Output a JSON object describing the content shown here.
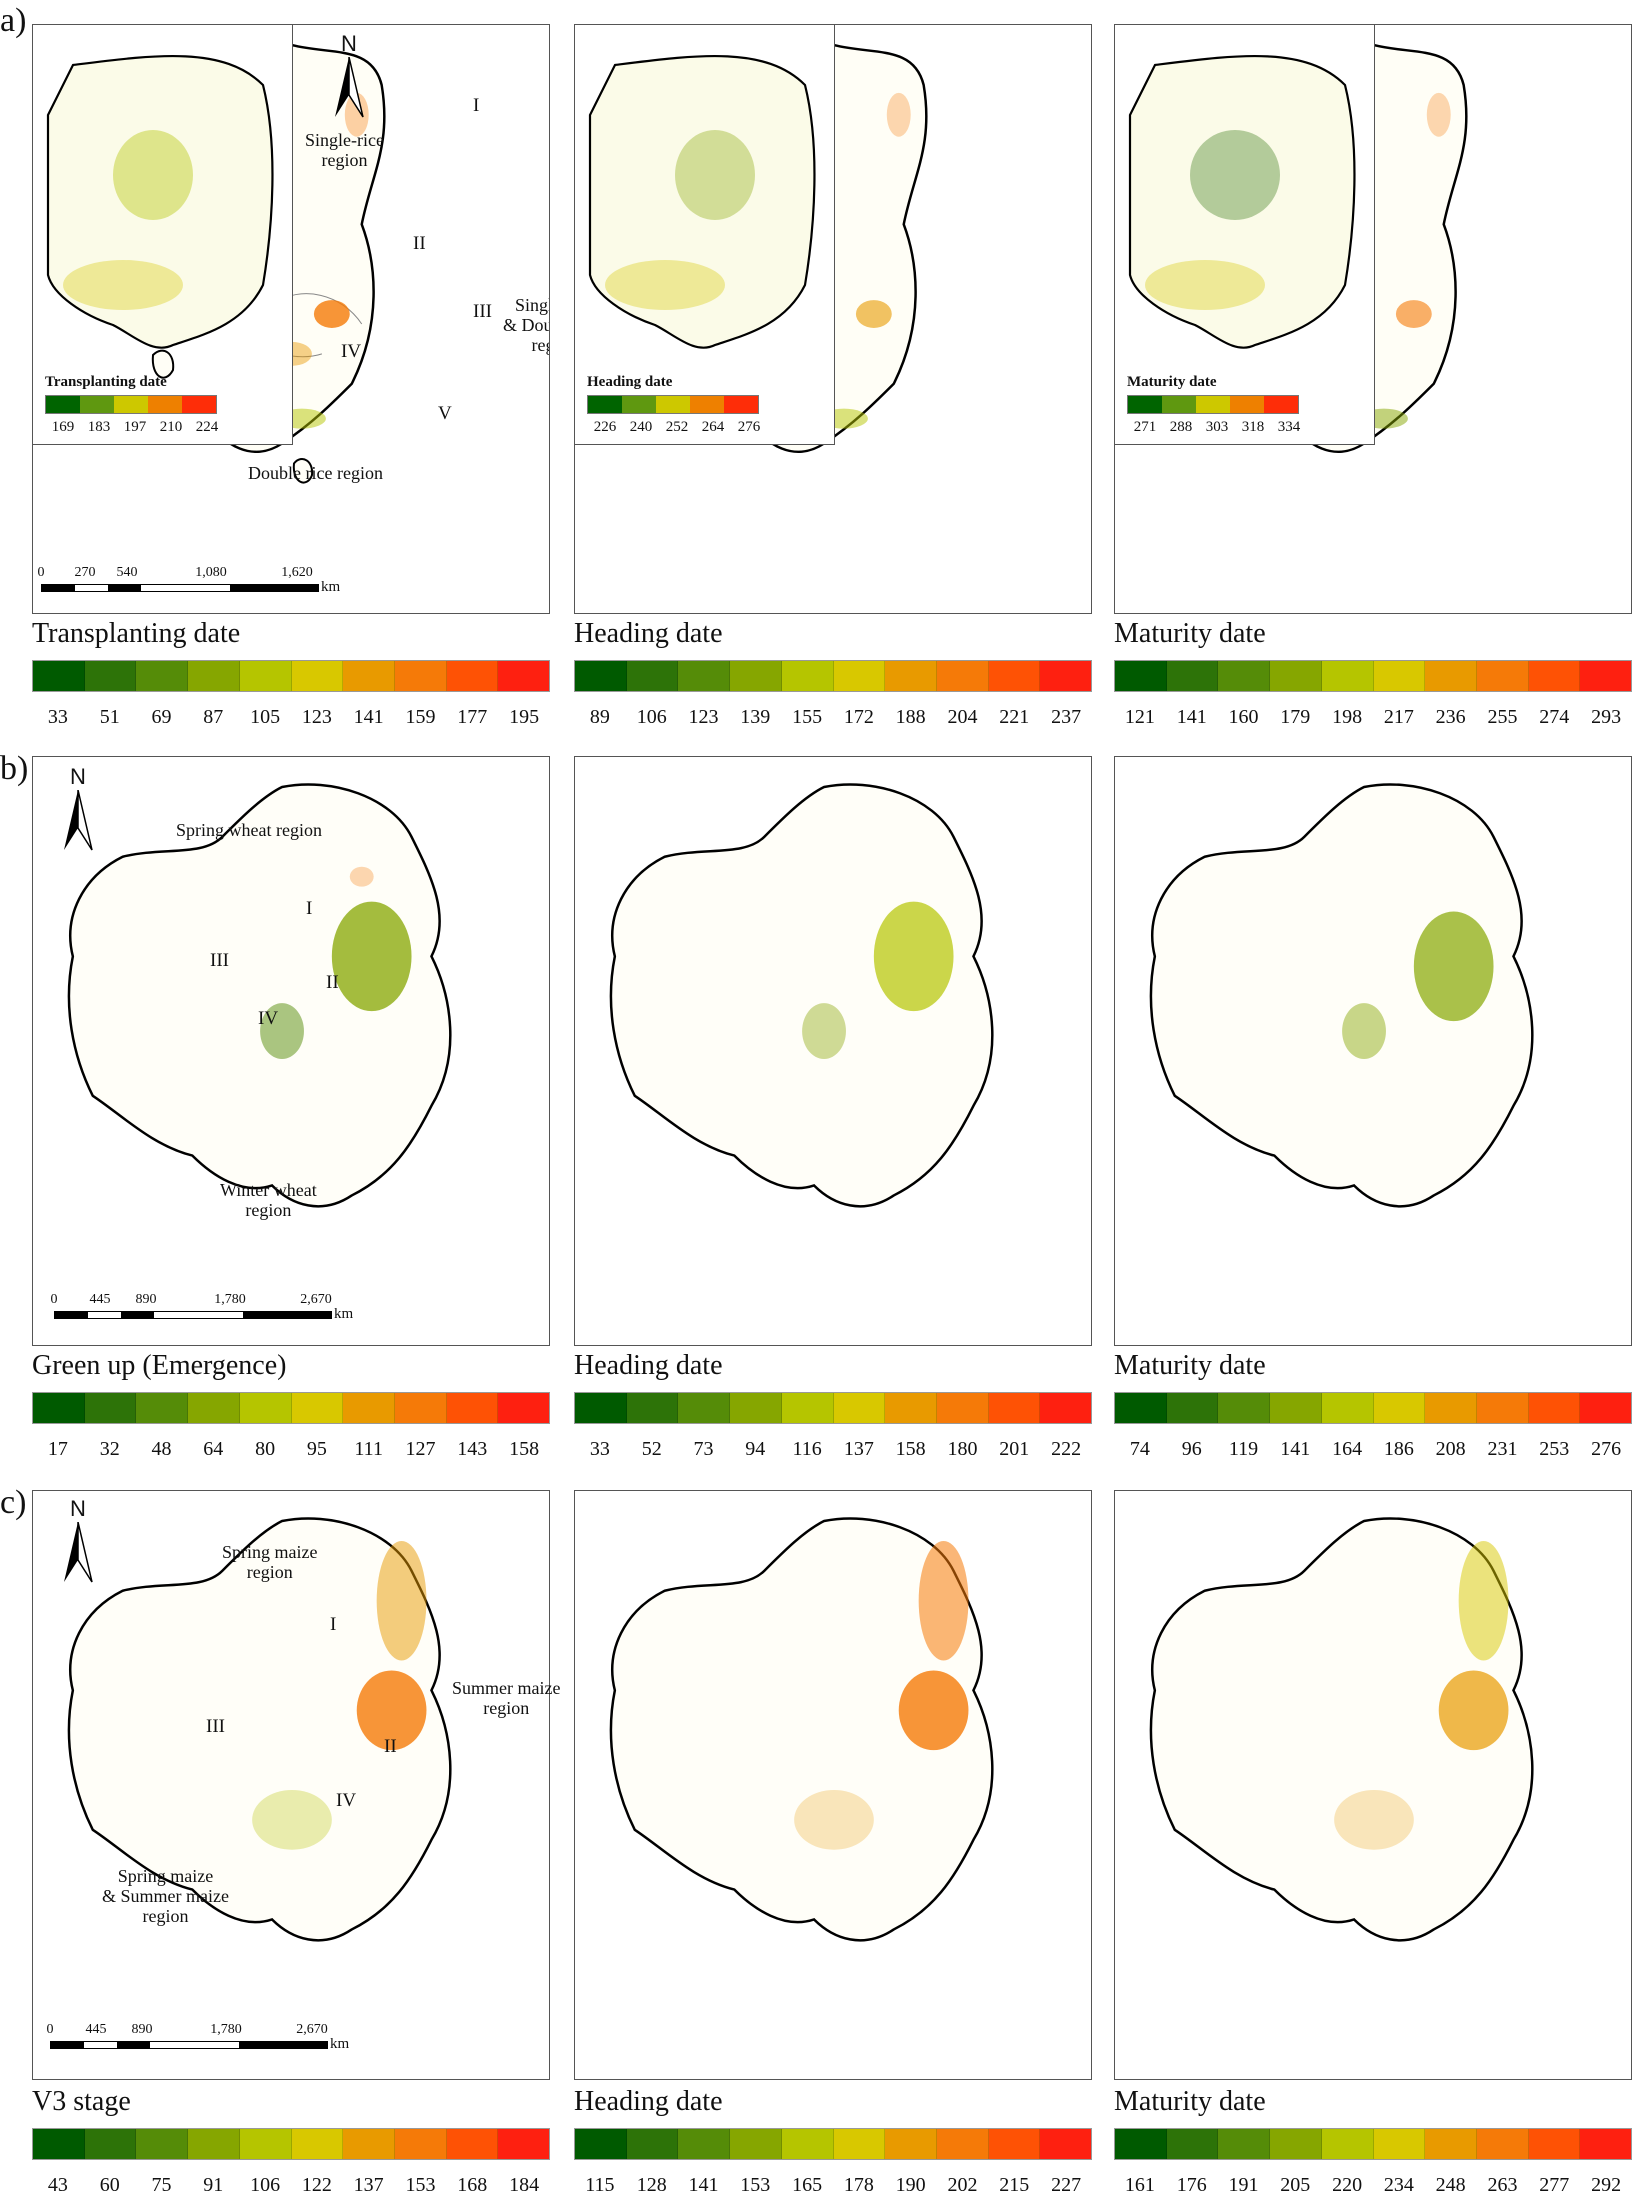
{
  "figure": {
    "rows": [
      {
        "label": "a)",
        "crop": "rice",
        "north_label": "N",
        "scale_bar": {
          "ticks": [
            "0",
            "270",
            "540",
            "1,080",
            "1,620"
          ],
          "unit": "km"
        },
        "annotations": [
          {
            "text": "Single-rice region",
            "roman": [
              "I",
              "II",
              "IV"
            ]
          },
          {
            "text": "Single-rice & Double rice region",
            "roman": [
              "III"
            ]
          },
          {
            "text": "Double rice region",
            "roman": [
              "V"
            ]
          }
        ],
        "annotation_lines": {
          "single_rice_1": "Single-rice",
          "single_rice_2": "region",
          "mixed_1": "Single-rice",
          "mixed_2": "& Double rice",
          "mixed_3": "region",
          "double": "Double rice region"
        },
        "roman_labels": {
          "I": "I",
          "II": "II",
          "III": "III",
          "IV": "IV",
          "V": "V"
        },
        "panels": [
          {
            "title": "Transplanting date",
            "ticks": [
              "33",
              "51",
              "69",
              "87",
              "105",
              "123",
              "141",
              "159",
              "177",
              "195"
            ],
            "inset": {
              "title": "Transplanting date",
              "ticks": [
                "169",
                "183",
                "197",
                "210",
                "224"
              ]
            }
          },
          {
            "title": "Heading date",
            "ticks": [
              "89",
              "106",
              "123",
              "139",
              "155",
              "172",
              "188",
              "204",
              "221",
              "237"
            ],
            "inset": {
              "title": "Heading date",
              "ticks": [
                "226",
                "240",
                "252",
                "264",
                "276"
              ]
            }
          },
          {
            "title": "Maturity date",
            "ticks": [
              "121",
              "141",
              "160",
              "179",
              "198",
              "217",
              "236",
              "255",
              "274",
              "293"
            ],
            "inset": {
              "title": "Maturity date",
              "ticks": [
                "271",
                "288",
                "303",
                "318",
                "334"
              ]
            }
          }
        ]
      },
      {
        "label": "b)",
        "crop": "wheat",
        "north_label": "N",
        "scale_bar": {
          "ticks": [
            "0",
            "445",
            "890",
            "1,780",
            "2,670"
          ],
          "unit": "km"
        },
        "annotation_lines": {
          "spring": "Spring wheat region",
          "winter_1": "Winter wheat",
          "winter_2": "region"
        },
        "roman_labels": {
          "I": "I",
          "II": "II",
          "III": "III",
          "IV": "IV"
        },
        "panels": [
          {
            "title": "Green up (Emergence)",
            "ticks": [
              "17",
              "32",
              "48",
              "64",
              "80",
              "95",
              "111",
              "127",
              "143",
              "158"
            ]
          },
          {
            "title": "Heading date",
            "ticks": [
              "33",
              "52",
              "73",
              "94",
              "116",
              "137",
              "158",
              "180",
              "201",
              "222"
            ]
          },
          {
            "title": "Maturity date",
            "ticks": [
              "74",
              "96",
              "119",
              "141",
              "164",
              "186",
              "208",
              "231",
              "253",
              "276"
            ]
          }
        ]
      },
      {
        "label": "c)",
        "crop": "maize",
        "north_label": "N",
        "scale_bar": {
          "ticks": [
            "0",
            "445",
            "890",
            "1,780",
            "2,670"
          ],
          "unit": "km"
        },
        "annotation_lines": {
          "spring_1": "Spring maize",
          "spring_2": "region",
          "summer_1": "Summer maize",
          "summer_2": "region",
          "mixed_1": "Spring maize",
          "mixed_2": "& Summer maize",
          "mixed_3": "region"
        },
        "roman_labels": {
          "I": "I",
          "II": "II",
          "III": "III",
          "IV": "IV"
        },
        "panels": [
          {
            "title": "V3 stage",
            "ticks": [
              "43",
              "60",
              "75",
              "91",
              "106",
              "122",
              "137",
              "153",
              "168",
              "184"
            ]
          },
          {
            "title": "Heading date",
            "ticks": [
              "115",
              "128",
              "141",
              "153",
              "165",
              "178",
              "190",
              "202",
              "215",
              "227"
            ]
          },
          {
            "title": "Maturity date",
            "ticks": [
              "161",
              "176",
              "191",
              "205",
              "220",
              "234",
              "248",
              "263",
              "277",
              "292"
            ]
          }
        ]
      }
    ]
  },
  "colors": {
    "ramp10": [
      "#005a00",
      "#2d7308",
      "#558c08",
      "#86a600",
      "#b5c500",
      "#d8c800",
      "#e89a00",
      "#f57a08",
      "#fe5205",
      "#fe2010"
    ],
    "ramp5": [
      "#006400",
      "#5f9810",
      "#cdc800",
      "#ee8000",
      "#fe2d08"
    ]
  }
}
